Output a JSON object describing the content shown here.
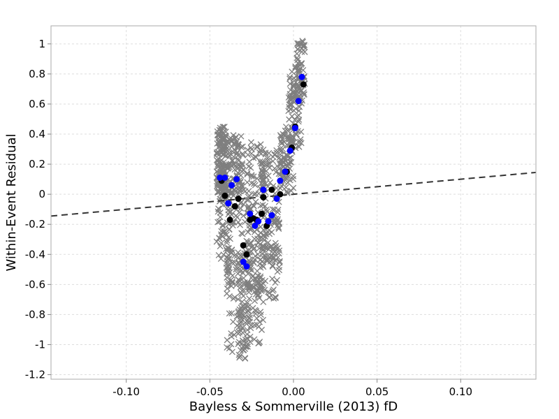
{
  "chart_data": {
    "type": "scatter",
    "title": "",
    "xlabel": "Bayless & Sommerville (2013) fD",
    "ylabel": "Within-Event Residual",
    "xlim": [
      -0.145,
      0.145
    ],
    "ylim": [
      -1.23,
      1.12
    ],
    "x_ticks": [
      -0.1,
      -0.05,
      0,
      0.05,
      0.1
    ],
    "x_tick_labels": [
      "-0.10",
      "-0.05",
      "0.00",
      "0.05",
      "0.10"
    ],
    "y_ticks": [
      1,
      0.8,
      0.6,
      0.4,
      0.2,
      0,
      -0.2,
      -0.4,
      -0.6,
      -0.8,
      -1,
      -1.2
    ],
    "y_tick_labels": [
      "1",
      "0.8",
      "0.6",
      "0.4",
      "0.2",
      "0",
      "-0.2",
      "-0.4",
      "-0.6",
      "-0.8",
      "-1",
      "-1.2"
    ],
    "grid": true,
    "colors": {
      "cross": "#7f7f7f",
      "black_points": "#000000",
      "blue_points": "#0000ff",
      "trend": "#333333",
      "grid": "#dddddd",
      "frame": "#aaaaaa"
    },
    "trend_line": {
      "x": [
        -0.145,
        0.145
      ],
      "y": [
        -0.145,
        0.145
      ],
      "style": "dashed"
    },
    "cross_clusters": [
      {
        "x": [
          -0.046,
          -0.04
        ],
        "y": [
          -0.05,
          0.45
        ],
        "n": 120
      },
      {
        "x": [
          -0.046,
          -0.03
        ],
        "y": [
          0.0,
          0.4
        ],
        "n": 150
      },
      {
        "x": [
          -0.046,
          -0.038
        ],
        "y": [
          -0.5,
          0.1
        ],
        "n": 60
      },
      {
        "x": [
          -0.04,
          -0.025
        ],
        "y": [
          -0.6,
          0.1
        ],
        "n": 90
      },
      {
        "x": [
          -0.04,
          -0.025
        ],
        "y": [
          -1.05,
          -0.35
        ],
        "n": 90
      },
      {
        "x": [
          -0.033,
          -0.027
        ],
        "y": [
          -1.12,
          -0.75
        ],
        "n": 35
      },
      {
        "x": [
          -0.028,
          -0.018
        ],
        "y": [
          -0.65,
          0.35
        ],
        "n": 140
      },
      {
        "x": [
          -0.028,
          -0.018
        ],
        "y": [
          -1.0,
          -0.5
        ],
        "n": 45
      },
      {
        "x": [
          -0.02,
          -0.008
        ],
        "y": [
          -0.45,
          0.3
        ],
        "n": 120
      },
      {
        "x": [
          -0.018,
          -0.008
        ],
        "y": [
          -0.7,
          -0.3
        ],
        "n": 35
      },
      {
        "x": [
          -0.008,
          0.0
        ],
        "y": [
          0.0,
          0.45
        ],
        "n": 90
      },
      {
        "x": [
          -0.003,
          0.005
        ],
        "y": [
          0.3,
          0.85
        ],
        "n": 90
      },
      {
        "x": [
          0.002,
          0.007
        ],
        "y": [
          0.6,
          1.02
        ],
        "n": 55
      }
    ],
    "series": [
      {
        "marker": "circle",
        "color": "#000000",
        "x": [
          -0.043,
          -0.041,
          -0.038,
          -0.035,
          -0.033,
          -0.03,
          -0.028,
          -0.026,
          -0.024,
          -0.022,
          -0.019,
          -0.018,
          -0.016,
          -0.013,
          -0.008,
          -0.004,
          -0.001,
          0.001,
          0.006
        ],
        "y": [
          0.09,
          -0.01,
          -0.17,
          -0.08,
          -0.03,
          -0.34,
          -0.4,
          -0.17,
          -0.16,
          -0.17,
          -0.13,
          -0.02,
          -0.21,
          0.03,
          0.0,
          0.15,
          0.31,
          0.45,
          0.73
        ]
      },
      {
        "marker": "circle",
        "color": "#0000ff",
        "x": [
          -0.044,
          -0.041,
          -0.039,
          -0.037,
          -0.034,
          -0.03,
          -0.028,
          -0.026,
          -0.023,
          -0.021,
          -0.018,
          -0.015,
          -0.013,
          -0.01,
          -0.008,
          -0.005,
          -0.002,
          0.001,
          0.003,
          0.005
        ],
        "y": [
          0.11,
          0.11,
          -0.06,
          0.06,
          0.1,
          -0.45,
          -0.48,
          -0.13,
          -0.21,
          -0.18,
          0.03,
          -0.18,
          -0.14,
          -0.03,
          0.09,
          0.15,
          0.29,
          0.44,
          0.62,
          0.78
        ]
      }
    ]
  }
}
